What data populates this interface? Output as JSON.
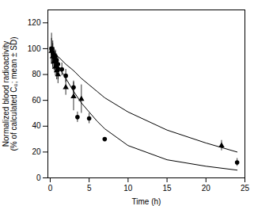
{
  "chart_data": {
    "type": "scatter",
    "title": "",
    "xlabel": "Time (h)",
    "ylabel": "Normalized blood radioactivity\n(% of calculated C₀; mean ± SD)",
    "xlim": [
      -0.3,
      25
    ],
    "ylim": [
      0,
      130
    ],
    "xticks": [
      0,
      5,
      10,
      15,
      20,
      25
    ],
    "yticks": [
      0,
      20,
      40,
      60,
      80,
      100,
      120
    ],
    "series": [
      {
        "type": "line",
        "color": "#000000",
        "line_style": "solid",
        "x": [
          0.0,
          0.2,
          0.5,
          1.0,
          2.0,
          3.0,
          4.0,
          5.0,
          6.0,
          7.0,
          10.0,
          15.0,
          20.0,
          24.0
        ],
        "values": [
          100,
          97,
          93,
          87,
          77,
          67,
          58,
          51,
          44,
          38,
          25,
          14,
          9,
          6
        ]
      },
      {
        "type": "line",
        "color": "#000000",
        "line_style": "solid",
        "x": [
          0.0,
          0.2,
          0.5,
          1.0,
          2.0,
          3.0,
          4.0,
          5.0,
          6.0,
          7.0,
          10.0,
          15.0,
          20.0,
          24.0
        ],
        "values": [
          100,
          99,
          97,
          94,
          88,
          83,
          77,
          72,
          67,
          62,
          51,
          37,
          27,
          20
        ]
      },
      {
        "type": "scatter",
        "marker": "square",
        "color": "#000000",
        "x": [
          0.17,
          0.33,
          0.5,
          0.67,
          0.83,
          1.0
        ],
        "values": [
          100,
          96,
          93,
          90,
          87,
          84
        ],
        "yerr": [
          12,
          10,
          8,
          8,
          8,
          8
        ]
      },
      {
        "type": "scatter",
        "marker": "circle",
        "color": "#000000",
        "x": [
          0.17,
          0.33,
          0.5,
          0.67,
          0.83,
          1.0,
          1.5,
          2.0,
          3.0,
          3.5,
          5.0,
          7.0,
          24.0
        ],
        "values": [
          100,
          97,
          95,
          94,
          91,
          88,
          84,
          79,
          70,
          47,
          46,
          30,
          12
        ],
        "yerr": [
          0,
          0,
          5,
          5,
          5,
          5,
          5,
          5,
          5,
          4,
          4,
          0,
          3
        ]
      },
      {
        "type": "scatter",
        "marker": "triangle",
        "color": "#000000",
        "x": [
          0.17,
          0.33,
          0.5,
          0.67,
          0.83,
          1.0,
          2.0,
          3.0,
          4.0,
          22.0
        ],
        "values": [
          98,
          94,
          90,
          86,
          83,
          80,
          70,
          63,
          61,
          25
        ],
        "yerr": [
          10,
          10,
          7,
          7,
          7,
          7,
          6,
          11,
          11,
          4
        ]
      }
    ]
  }
}
